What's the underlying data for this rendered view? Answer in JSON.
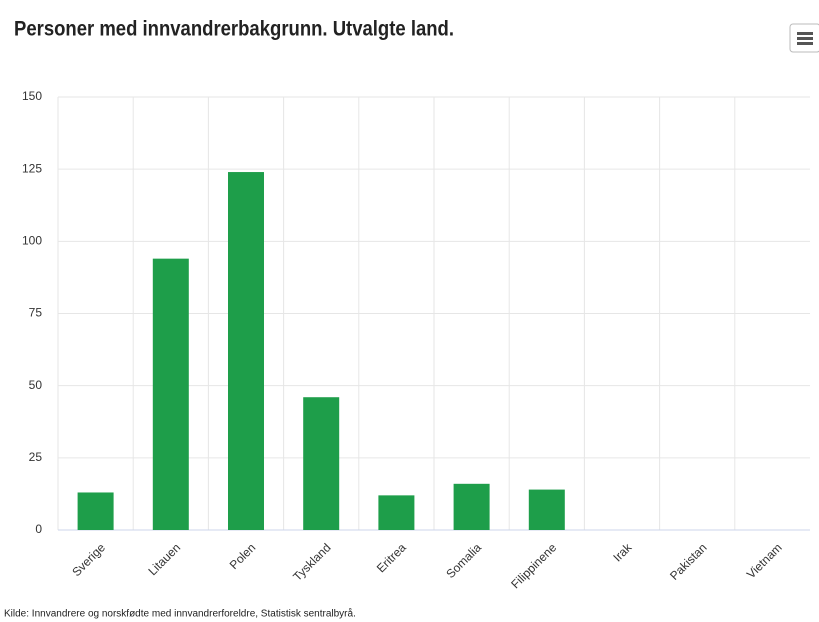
{
  "chart_data": {
    "type": "bar",
    "title": "Personer med innvandrerbakgrunn. Utvalgte land.",
    "categories": [
      "Sverige",
      "Litauen",
      "Polen",
      "Tyskland",
      "Eritrea",
      "Somalia",
      "Filippinene",
      "Irak",
      "Pakistan",
      "Vietnam"
    ],
    "values": [
      13,
      94,
      124,
      46,
      12,
      16,
      14,
      0,
      0,
      0
    ],
    "color": "#1e9e4a",
    "ylim": [
      0,
      150
    ],
    "yticks": [
      0,
      25,
      50,
      75,
      100,
      125,
      150
    ],
    "grid": true,
    "source": "Kilde: Innvandrere og norskfødte med innvandrerforeldre, Statistisk sentralbyrå."
  }
}
